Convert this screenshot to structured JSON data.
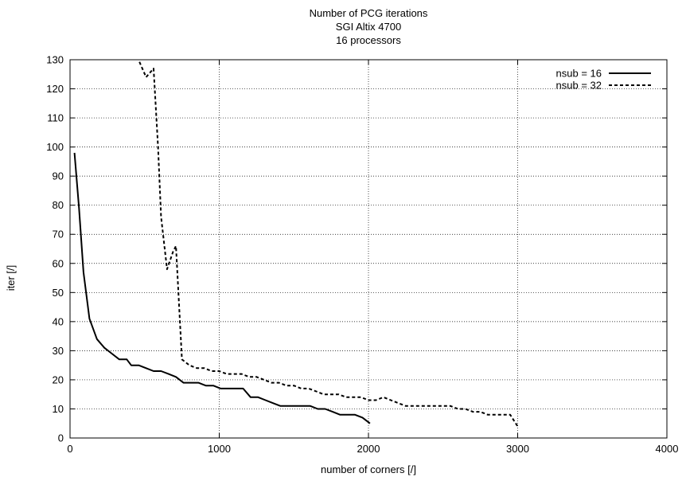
{
  "chart_data": {
    "type": "line",
    "title": [
      "Number of PCG iterations",
      "SGI Altix 4700",
      "16 processors"
    ],
    "xlabel": "number of corners [/]",
    "ylabel": "iter [/]",
    "xlim": [
      0,
      4000
    ],
    "ylim": [
      0,
      130
    ],
    "xticks": [
      0,
      1000,
      2000,
      3000,
      4000
    ],
    "yticks": [
      0,
      10,
      20,
      30,
      40,
      50,
      60,
      70,
      80,
      90,
      100,
      110,
      120,
      130
    ],
    "grid": true,
    "legend_position": "top-right",
    "series": [
      {
        "name": "nsub = 16",
        "style": "solid",
        "color": "#000000",
        "x": [
          30,
          60,
          90,
          130,
          180,
          230,
          280,
          330,
          380,
          410,
          460,
          510,
          560,
          610,
          660,
          710,
          760,
          810,
          860,
          910,
          960,
          1010,
          1060,
          1110,
          1160,
          1210,
          1260,
          1310,
          1360,
          1410,
          1460,
          1510,
          1560,
          1610,
          1660,
          1710,
          1760,
          1810,
          1860,
          1910,
          1960,
          2010
        ],
        "y": [
          98,
          79,
          57,
          41,
          34,
          31,
          29,
          27,
          27,
          25,
          25,
          24,
          23,
          23,
          22,
          21,
          19,
          19,
          19,
          18,
          18,
          17,
          17,
          17,
          17,
          14,
          14,
          13,
          12,
          11,
          11,
          11,
          11,
          11,
          10,
          10,
          9,
          8,
          8,
          8,
          7,
          5
        ]
      },
      {
        "name": "nsub = 32",
        "style": "dashed",
        "color": "#000000",
        "x": [
          450,
          510,
          560,
          590,
          610,
          650,
          690,
          710,
          750,
          800,
          850,
          900,
          950,
          1000,
          1050,
          1100,
          1150,
          1200,
          1250,
          1300,
          1350,
          1400,
          1450,
          1500,
          1550,
          1600,
          1650,
          1700,
          1750,
          1800,
          1850,
          1900,
          1950,
          2000,
          2050,
          2100,
          2150,
          2200,
          2250,
          2300,
          2350,
          2400,
          2450,
          2500,
          2550,
          2600,
          2650,
          2700,
          2750,
          2800,
          2850,
          2900,
          2950,
          3000
        ],
        "y": [
          131,
          124,
          127,
          100,
          76,
          58,
          64,
          66,
          27,
          25,
          24,
          24,
          23,
          23,
          22,
          22,
          22,
          21,
          21,
          20,
          19,
          19,
          18,
          18,
          17,
          17,
          16,
          15,
          15,
          15,
          14,
          14,
          14,
          13,
          13,
          14,
          13,
          12,
          11,
          11,
          11,
          11,
          11,
          11,
          11,
          10,
          10,
          9,
          9,
          8,
          8,
          8,
          8,
          4
        ]
      }
    ]
  }
}
